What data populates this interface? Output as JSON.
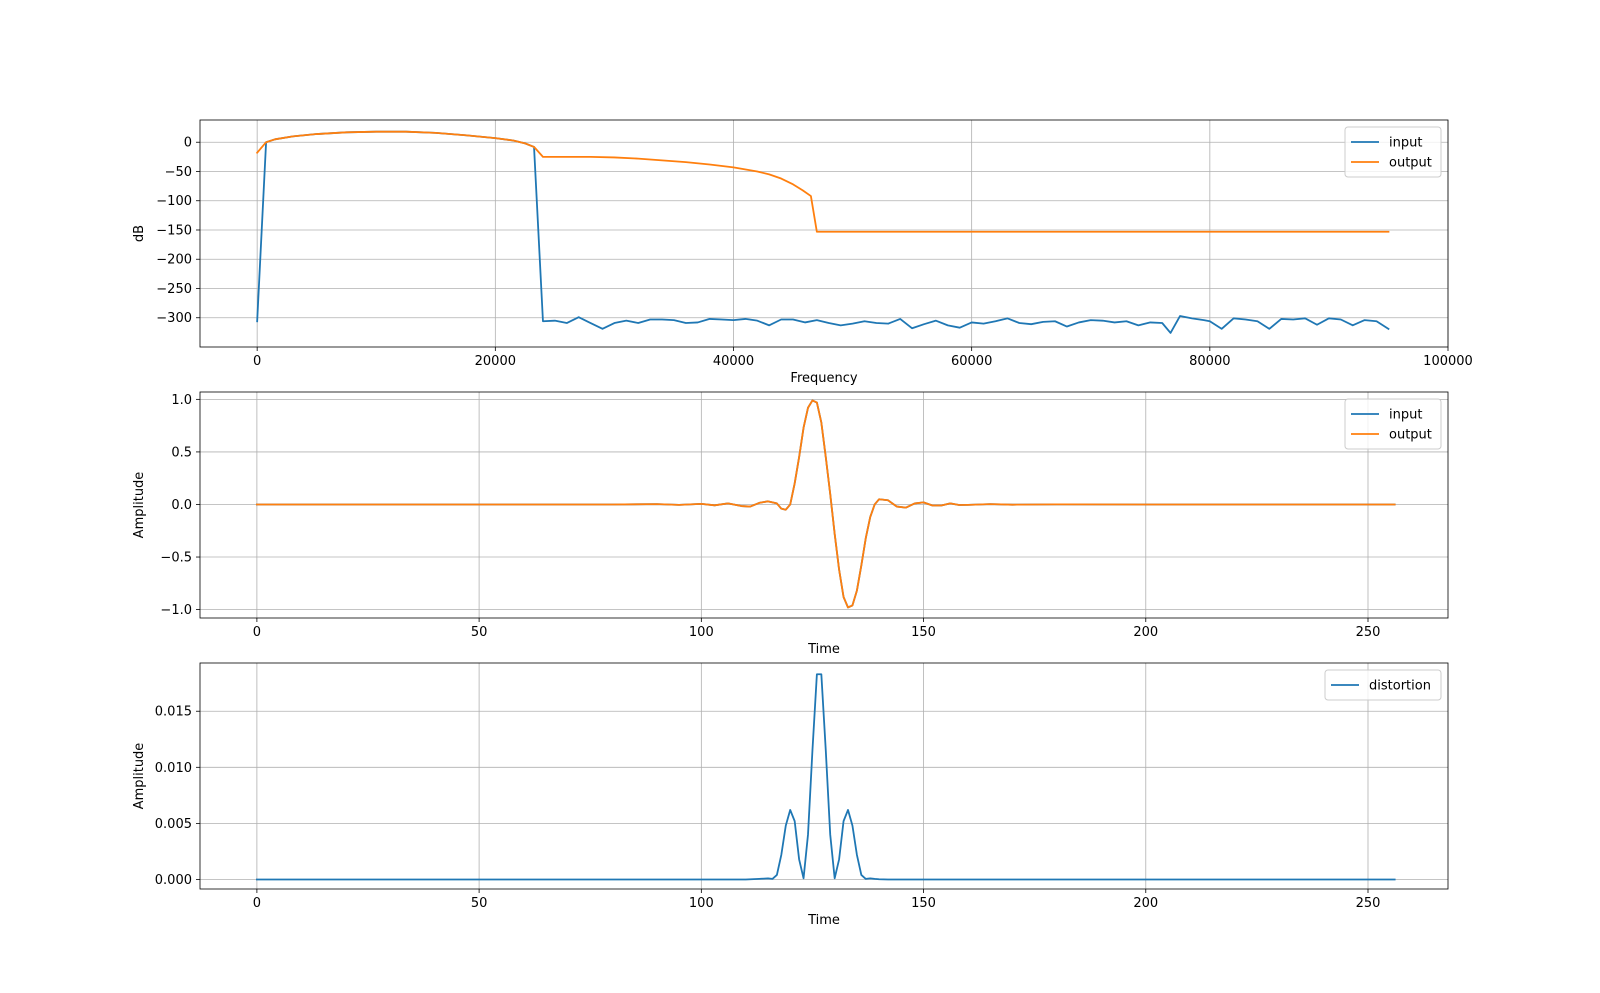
{
  "colors": {
    "input": "#1f77b4",
    "output": "#ff7f0e",
    "distortion": "#1f77b4"
  },
  "chart_data": [
    {
      "type": "line",
      "xlabel": "Frequency",
      "ylabel": "dB",
      "xlim": [
        -4800,
        100000
      ],
      "ylim": [
        -350,
        38
      ],
      "xticks": [
        0,
        20000,
        40000,
        60000,
        80000,
        100000
      ],
      "xtick_labels": [
        "0",
        "20000",
        "40000",
        "60000",
        "80000",
        "100000"
      ],
      "yticks": [
        0,
        -50,
        -100,
        -150,
        -200,
        -250,
        -300
      ],
      "ytick_labels": [
        "0",
        "−50",
        "−100",
        "−150",
        "−200",
        "−250",
        "−300"
      ],
      "grid": true,
      "legend_position": "top-right",
      "series": [
        {
          "name": "input",
          "color_key": "input",
          "x": [
            0,
            750,
            1500,
            3000,
            5000,
            7500,
            10000,
            12500,
            15000,
            17500,
            20000,
            21500,
            22500,
            23250,
            24000,
            25000,
            26000,
            27000,
            28000,
            29000,
            30000,
            31000,
            32000,
            33000,
            34000,
            35000,
            36000,
            37000,
            38000,
            39000,
            40000,
            41000,
            42000,
            43000,
            44000,
            45000,
            46000,
            47000,
            48000,
            49000,
            50000,
            51000,
            52000,
            53000,
            54000,
            55000,
            56000,
            57000,
            58000,
            59000,
            60000,
            61000,
            62000,
            63000,
            64000,
            65000,
            66000,
            67000,
            68000,
            69000,
            70000,
            71000,
            72000,
            73000,
            74000,
            75000,
            76000,
            76700,
            77500,
            78500,
            79500,
            80000,
            81000,
            82000,
            83000,
            84000,
            85000,
            86000,
            87000,
            88000,
            89000,
            90000,
            91000,
            92000,
            93000,
            94000,
            95000
          ],
          "y": [
            -306,
            0,
            5,
            10,
            14,
            17,
            18,
            18,
            16,
            12,
            7,
            3,
            -2,
            -8,
            -306,
            -305,
            -309,
            -299,
            -309,
            -319,
            -309,
            -305,
            -309,
            -303,
            -303,
            -304,
            -309,
            -308,
            -302,
            -303,
            -304,
            -302,
            -305,
            -313,
            -303,
            -303,
            -308,
            -304,
            -309,
            -313,
            -310,
            -306,
            -309,
            -310,
            -302,
            -318,
            -311,
            -305,
            -313,
            -317,
            -308,
            -310,
            -306,
            -301,
            -309,
            -311,
            -307,
            -306,
            -315,
            -308,
            -304,
            -305,
            -308,
            -306,
            -313,
            -308,
            -309,
            -326,
            -297,
            -301,
            -304,
            -306,
            -319,
            -301,
            -303,
            -306,
            -319,
            -302,
            -303,
            -301,
            -312,
            -301,
            -303,
            -313,
            -304,
            -306,
            -319
          ]
        },
        {
          "name": "output",
          "color_key": "output",
          "x": [
            0,
            750,
            1500,
            3000,
            5000,
            7500,
            10000,
            12500,
            15000,
            17500,
            20000,
            21500,
            22500,
            23250,
            24000,
            26000,
            28000,
            30000,
            32000,
            34000,
            36000,
            38000,
            40000,
            42000,
            43000,
            44000,
            45000,
            45800,
            46500,
            47000,
            60000,
            80000,
            95000
          ],
          "y": [
            -18,
            0,
            5,
            10,
            14,
            17,
            18,
            18,
            16,
            12,
            7,
            3,
            -2,
            -8,
            -25,
            -25,
            -25,
            -26,
            -28,
            -31,
            -34,
            -38,
            -43,
            -50,
            -55,
            -62,
            -72,
            -82,
            -92,
            -153,
            -153,
            -153,
            -153
          ]
        }
      ]
    },
    {
      "type": "line",
      "xlabel": "Time",
      "ylabel": "Amplitude",
      "xlim": [
        -12.8,
        268
      ],
      "ylim": [
        -1.08,
        1.07
      ],
      "xticks": [
        0,
        50,
        100,
        150,
        200,
        250
      ],
      "xtick_labels": [
        "0",
        "50",
        "100",
        "150",
        "200",
        "250"
      ],
      "yticks": [
        1.0,
        0.5,
        0.0,
        -0.5,
        -1.0
      ],
      "ytick_labels": [
        "1.0",
        "0.5",
        "0.0",
        "−0.5",
        "−1.0"
      ],
      "grid": true,
      "legend_position": "top-right",
      "series": [
        {
          "name": "input",
          "color_key": "input",
          "x": [
            0,
            80,
            90,
            95,
            100,
            103,
            106,
            109,
            111,
            113,
            115,
            117,
            118,
            119,
            120,
            121,
            122,
            123,
            124,
            125,
            126,
            127,
            128,
            129,
            130,
            131,
            132,
            133,
            134,
            135,
            136,
            137,
            138,
            139,
            140,
            142,
            144,
            146,
            148,
            150,
            152,
            154,
            156,
            158,
            160,
            165,
            170,
            180,
            200,
            256
          ],
          "y": [
            0,
            0,
            0.003,
            -0.004,
            0.006,
            -0.008,
            0.01,
            -0.015,
            -0.02,
            0.015,
            0.03,
            0.01,
            -0.04,
            -0.05,
            0.0,
            0.2,
            0.45,
            0.73,
            0.92,
            0.99,
            0.97,
            0.78,
            0.45,
            0.1,
            -0.28,
            -0.62,
            -0.88,
            -0.98,
            -0.96,
            -0.82,
            -0.58,
            -0.32,
            -0.12,
            0.0,
            0.05,
            0.04,
            -0.02,
            -0.03,
            0.01,
            0.02,
            -0.01,
            -0.01,
            0.01,
            -0.005,
            -0.004,
            0.003,
            -0.002,
            0.001,
            0,
            0
          ]
        },
        {
          "name": "output",
          "color_key": "output",
          "x": [
            0,
            80,
            90,
            95,
            100,
            103,
            106,
            109,
            111,
            113,
            115,
            117,
            118,
            119,
            120,
            121,
            122,
            123,
            124,
            125,
            126,
            127,
            128,
            129,
            130,
            131,
            132,
            133,
            134,
            135,
            136,
            137,
            138,
            139,
            140,
            142,
            144,
            146,
            148,
            150,
            152,
            154,
            156,
            158,
            160,
            165,
            170,
            180,
            200,
            256
          ],
          "y": [
            0,
            0,
            0.003,
            -0.004,
            0.006,
            -0.008,
            0.01,
            -0.015,
            -0.02,
            0.015,
            0.03,
            0.01,
            -0.04,
            -0.05,
            0.0,
            0.2,
            0.45,
            0.73,
            0.92,
            0.99,
            0.97,
            0.78,
            0.45,
            0.1,
            -0.28,
            -0.62,
            -0.88,
            -0.98,
            -0.96,
            -0.82,
            -0.58,
            -0.32,
            -0.12,
            0.0,
            0.05,
            0.04,
            -0.02,
            -0.03,
            0.01,
            0.02,
            -0.01,
            -0.01,
            0.01,
            -0.005,
            -0.004,
            0.003,
            -0.002,
            0.001,
            0,
            0
          ]
        }
      ]
    },
    {
      "type": "line",
      "xlabel": "Time",
      "ylabel": "Amplitude",
      "xlim": [
        -12.8,
        268
      ],
      "ylim": [
        -0.00085,
        0.0193
      ],
      "xticks": [
        0,
        50,
        100,
        150,
        200,
        250
      ],
      "xtick_labels": [
        "0",
        "50",
        "100",
        "150",
        "200",
        "250"
      ],
      "yticks": [
        0.0,
        0.005,
        0.01,
        0.015
      ],
      "ytick_labels": [
        "0.000",
        "0.005",
        "0.010",
        "0.015"
      ],
      "grid": true,
      "legend_position": "top-right",
      "series": [
        {
          "name": "distortion",
          "color_key": "distortion",
          "x": [
            0,
            110,
            113,
            115,
            116,
            117,
            118,
            119,
            120,
            121,
            122,
            123,
            124,
            125,
            126,
            127,
            128,
            129,
            130,
            131,
            132,
            133,
            134,
            135,
            136,
            137,
            138,
            139,
            140,
            142,
            256
          ],
          "y": [
            0,
            0,
            5e-05,
            0.0001,
            5e-05,
            0.0004,
            0.0022,
            0.0048,
            0.0062,
            0.0052,
            0.0018,
            0.0001,
            0.004,
            0.0115,
            0.0183,
            0.0183,
            0.0115,
            0.004,
            0.0001,
            0.0018,
            0.0052,
            0.0062,
            0.0048,
            0.0022,
            0.0004,
            5e-05,
            0.0001,
            5e-05,
            2e-05,
            0,
            0
          ]
        }
      ]
    }
  ]
}
